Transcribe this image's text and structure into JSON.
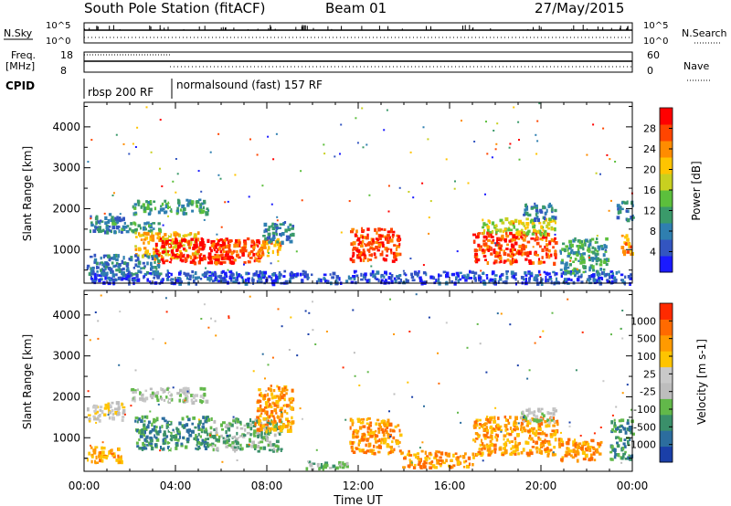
{
  "header": {
    "station": "South Pole Station (fitACF)",
    "beam": "Beam 01",
    "date": "27/May/2015"
  },
  "top_panels": {
    "nsky_label": "N.Sky",
    "nsearch_label": "N.Search",
    "count_ticks": [
      "10^5",
      "10^0"
    ],
    "freq_label": "Freq.",
    "freq_unit": "[MHz]",
    "freq_ticks": [
      "18",
      "8"
    ],
    "nave_label": "Nave",
    "nave_ticks": [
      "60",
      "0"
    ],
    "cpid_label": "CPID",
    "cpid_segments": [
      {
        "label": "rbsp 200 RF",
        "start_hour": 0,
        "end_hour": 3.75
      },
      {
        "label": "normalsound (fast) 157 RF",
        "start_hour": 3.75,
        "end_hour": 24
      }
    ]
  },
  "chart_data": [
    {
      "type": "heatmap",
      "quantity": "Power",
      "xlabel": "",
      "ylabel": "Slant Range [km]",
      "xlim": [
        0,
        24
      ],
      "ylim": [
        180,
        4600
      ],
      "y_ticks": [
        1000,
        2000,
        3000,
        4000
      ],
      "colorbar": {
        "label": "Power [dB]",
        "ticks": [
          "4",
          "8",
          "12",
          "16",
          "20",
          "24",
          "28"
        ],
        "colors": [
          "#1a1aff",
          "#3355c0",
          "#2f7fb0",
          "#3a9a6a",
          "#5cbf3c",
          "#c8d020",
          "#ffc400",
          "#ff8c00",
          "#ff4500",
          "#ff0000"
        ]
      },
      "regions": [
        {
          "x": [
            0.1,
            1.7
          ],
          "y": [
            1450,
            1900
          ],
          "level": 2
        },
        {
          "x": [
            1.2,
            3.3
          ],
          "y": [
            1450,
            1700
          ],
          "level": 3
        },
        {
          "x": [
            2.1,
            5.4
          ],
          "y": [
            1900,
            2250
          ],
          "level": 3
        },
        {
          "x": [
            2.2,
            5.0
          ],
          "y": [
            800,
            1450
          ],
          "level": 6
        },
        {
          "x": [
            3.1,
            6.4
          ],
          "y": [
            700,
            1300
          ],
          "level": 9
        },
        {
          "x": [
            5.5,
            7.7
          ],
          "y": [
            700,
            1300
          ],
          "level": 8
        },
        {
          "x": [
            7.5,
            8.6
          ],
          "y": [
            850,
            1300
          ],
          "level": 7
        },
        {
          "x": [
            7.8,
            9.1
          ],
          "y": [
            1200,
            1700
          ],
          "level": 2
        },
        {
          "x": [
            0.1,
            3.3
          ],
          "y": [
            400,
            900
          ],
          "level": 2
        },
        {
          "x": [
            0.2,
            23.9
          ],
          "y": [
            200,
            500
          ],
          "level": 1
        },
        {
          "x": [
            11.6,
            13.8
          ],
          "y": [
            750,
            1550
          ],
          "level": 8
        },
        {
          "x": [
            17.0,
            20.6
          ],
          "y": [
            700,
            1450
          ],
          "level": 8
        },
        {
          "x": [
            17.4,
            20.6
          ],
          "y": [
            1400,
            1800
          ],
          "level": 5
        },
        {
          "x": [
            20.8,
            22.9
          ],
          "y": [
            450,
            1300
          ],
          "level": 3
        },
        {
          "x": [
            19.2,
            20.6
          ],
          "y": [
            1750,
            2150
          ],
          "level": 2
        },
        {
          "x": [
            23.5,
            24.0
          ],
          "y": [
            900,
            1400
          ],
          "level": 7
        },
        {
          "x": [
            23.3,
            24.0
          ],
          "y": [
            1750,
            2200
          ],
          "level": 2
        }
      ]
    },
    {
      "type": "heatmap",
      "quantity": "Velocity",
      "xlabel": "Time UT",
      "ylabel": "Slant Range [km]",
      "xlim": [
        0,
        24
      ],
      "ylim": [
        180,
        4600
      ],
      "x_ticks": [
        "00:00",
        "04:00",
        "08:00",
        "12:00",
        "16:00",
        "20:00",
        "00:00"
      ],
      "y_ticks": [
        1000,
        2000,
        3000,
        4000
      ],
      "colorbar": {
        "label": "Velocity [m s-1]",
        "ticks": [
          "1000",
          "500",
          "100",
          "25",
          "-25",
          "-100",
          "-500",
          "-1000"
        ],
        "colors": [
          "#1a3fa8",
          "#2c6d9e",
          "#3a8f6a",
          "#62b84a",
          "#bdbdbd",
          "#c9c9c9",
          "#ffc400",
          "#ff9a00",
          "#ff6a00",
          "#ff2a00"
        ]
      },
      "regions": [
        {
          "x": [
            0.1,
            1.7
          ],
          "y": [
            1450,
            1900
          ],
          "level": 5
        },
        {
          "x": [
            0.1,
            1.7
          ],
          "y": [
            400,
            800
          ],
          "level": 7
        },
        {
          "x": [
            2.0,
            5.4
          ],
          "y": [
            1900,
            2250
          ],
          "level": 4
        },
        {
          "x": [
            2.2,
            5.4
          ],
          "y": [
            750,
            1550
          ],
          "level": 2
        },
        {
          "x": [
            5.4,
            8.6
          ],
          "y": [
            700,
            1500
          ],
          "level": 3
        },
        {
          "x": [
            7.4,
            9.1
          ],
          "y": [
            1200,
            2300
          ],
          "level": 7
        },
        {
          "x": [
            11.6,
            13.8
          ],
          "y": [
            650,
            1500
          ],
          "level": 7
        },
        {
          "x": [
            13.8,
            17.0
          ],
          "y": [
            300,
            700
          ],
          "level": 7
        },
        {
          "x": [
            17.0,
            20.8
          ],
          "y": [
            600,
            1550
          ],
          "level": 7
        },
        {
          "x": [
            19.0,
            20.6
          ],
          "y": [
            1400,
            1750
          ],
          "level": 4
        },
        {
          "x": [
            20.8,
            22.6
          ],
          "y": [
            450,
            1000
          ],
          "level": 7
        },
        {
          "x": [
            23.0,
            24.0
          ],
          "y": [
            500,
            1500
          ],
          "level": 2
        },
        {
          "x": [
            9.5,
            11.5
          ],
          "y": [
            250,
            450
          ],
          "level": 3
        }
      ]
    }
  ]
}
